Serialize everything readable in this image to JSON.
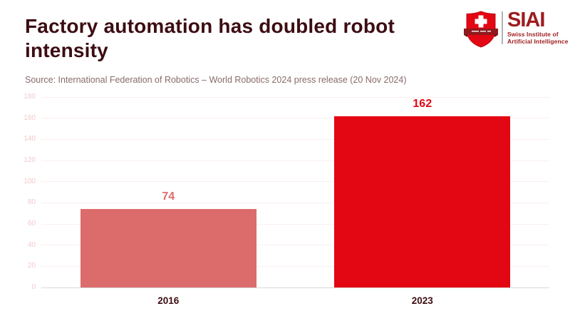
{
  "page": {
    "title": "Factory automation has doubled robot intensity",
    "source": "Source: International Federation of Robotics – World Robotics 2024 press release (20 Nov 2024)"
  },
  "logo": {
    "acronym": "SIAI",
    "tagline": [
      "Swiss Institute of",
      "Artificial Intelligence"
    ],
    "shield_icon": "swiss-shield-cross-banner-icon",
    "shield_color": "#e30613",
    "banner_color": "#8f1a1d",
    "text_color": "#9e1b1e"
  },
  "chart_data": {
    "type": "bar",
    "categories": [
      "2016",
      "2023"
    ],
    "values": [
      74,
      162
    ],
    "value_labels": [
      "74",
      "162"
    ],
    "title": "Factory automation has doubled robot intensity",
    "xlabel": "",
    "ylabel": "",
    "ylim": [
      0,
      180
    ],
    "ytick_interval": 20,
    "yticks": [
      0,
      20,
      40,
      60,
      80,
      100,
      120,
      140,
      160,
      180
    ],
    "grid": true,
    "legend": false,
    "bar_colors": [
      "#dc6b6b",
      "#e30613"
    ],
    "value_label_colors": [
      "#dc6b6b",
      "#e30613"
    ]
  },
  "colors": {
    "title_text": "#3c0d12",
    "source_text": "#8a6a6a",
    "axis_tick_text": "#f4c9c9",
    "gridline": "#fceeee",
    "baseline": "#d9d9d9",
    "category_text": "#3c0d12"
  }
}
